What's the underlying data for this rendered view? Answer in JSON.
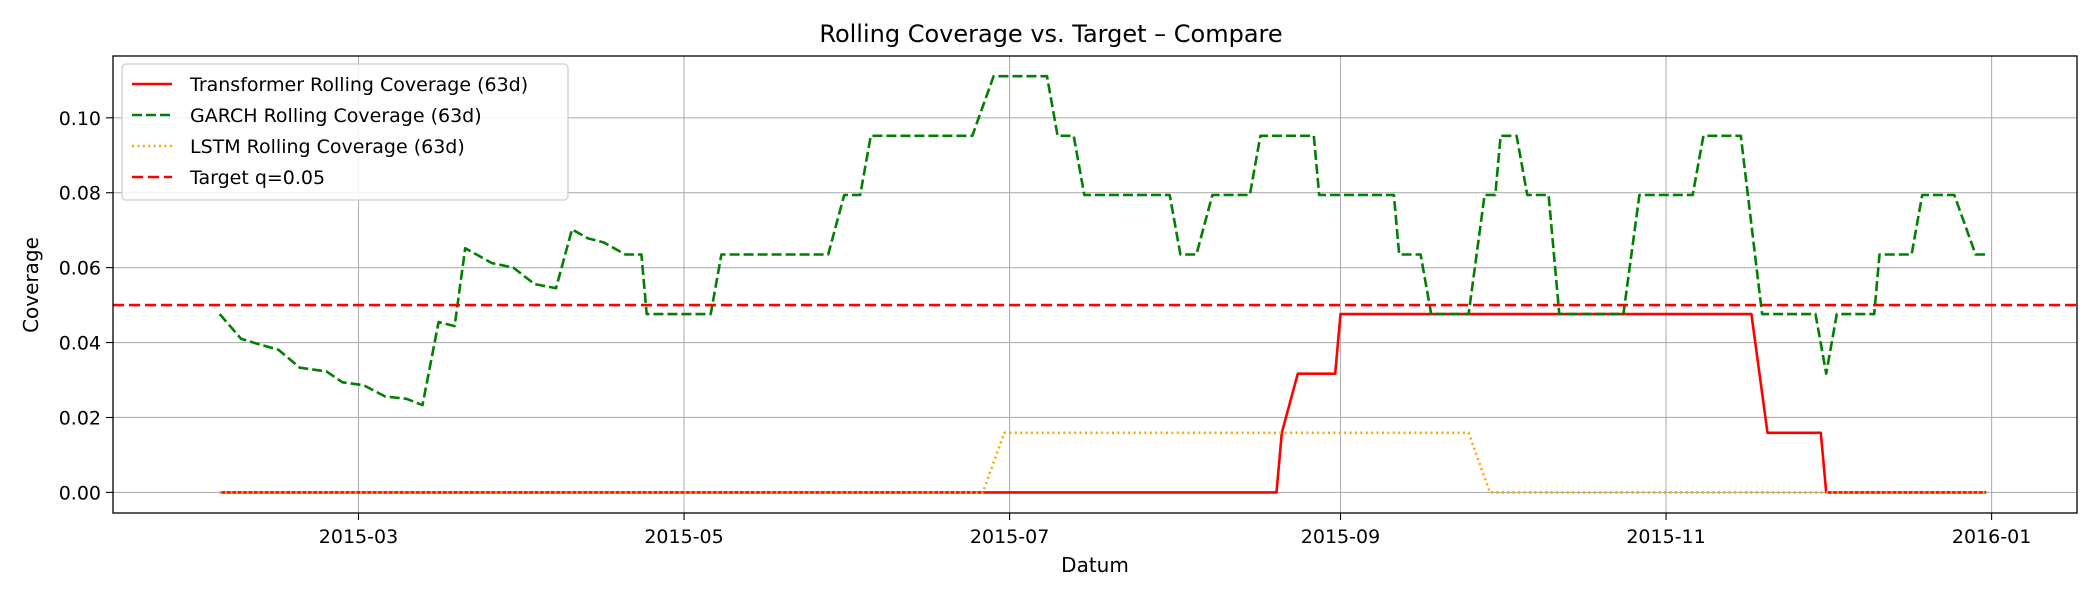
{
  "chart_data": {
    "type": "line",
    "title": "Rolling Coverage vs. Target – Compare",
    "xlabel": "Datum",
    "ylabel": "Coverage",
    "grid": true,
    "legend_position": "top-left",
    "xlim": [
      "2015-01-14",
      "2016-01-17"
    ],
    "ylim": [
      -0.0055,
      0.1165
    ],
    "x_ticks": [
      "2015-03-01",
      "2015-05-01",
      "2015-07-01",
      "2015-09-01",
      "2015-11-01",
      "2016-01-01"
    ],
    "x_tick_labels": [
      "2015-03",
      "2015-05",
      "2015-07",
      "2015-09",
      "2015-11",
      "2016-01"
    ],
    "y_ticks": [
      0.0,
      0.02,
      0.04,
      0.06,
      0.08,
      0.1
    ],
    "y_tick_labels": [
      "0.00",
      "0.02",
      "0.04",
      "0.06",
      "0.08",
      "0.10"
    ],
    "series": [
      {
        "name": "Transformer Rolling Coverage (63d)",
        "color": "#ff0000",
        "style": "solid",
        "points": [
          [
            "2015-02-03",
            0.0
          ],
          [
            "2015-08-20",
            0.0
          ],
          [
            "2015-08-21",
            0.0159
          ],
          [
            "2015-08-24",
            0.0317
          ],
          [
            "2015-08-31",
            0.0317
          ],
          [
            "2015-09-01",
            0.0476
          ],
          [
            "2015-11-17",
            0.0476
          ],
          [
            "2015-11-20",
            0.0159
          ],
          [
            "2015-11-30",
            0.0159
          ],
          [
            "2015-12-01",
            0.0
          ],
          [
            "2015-12-31",
            0.0
          ]
        ]
      },
      {
        "name": "GARCH Rolling Coverage (63d)",
        "color": "#008000",
        "style": "dashed",
        "points": [
          [
            "2015-02-03",
            0.0476
          ],
          [
            "2015-02-07",
            0.041
          ],
          [
            "2015-02-10",
            0.0397
          ],
          [
            "2015-02-14",
            0.0381
          ],
          [
            "2015-02-18",
            0.0333
          ],
          [
            "2015-02-23",
            0.0323
          ],
          [
            "2015-02-26",
            0.0294
          ],
          [
            "2015-03-02",
            0.0286
          ],
          [
            "2015-03-06",
            0.0256
          ],
          [
            "2015-03-10",
            0.025
          ],
          [
            "2015-03-13",
            0.0233
          ],
          [
            "2015-03-16",
            0.0455
          ],
          [
            "2015-03-19",
            0.0444
          ],
          [
            "2015-03-21",
            0.0652
          ],
          [
            "2015-03-26",
            0.0612
          ],
          [
            "2015-03-30",
            0.06
          ],
          [
            "2015-04-03",
            0.0556
          ],
          [
            "2015-04-07",
            0.0545
          ],
          [
            "2015-04-10",
            0.0702
          ],
          [
            "2015-04-13",
            0.0678
          ],
          [
            "2015-04-16",
            0.0667
          ],
          [
            "2015-04-20",
            0.0635
          ],
          [
            "2015-04-23",
            0.0635
          ],
          [
            "2015-04-24",
            0.0476
          ],
          [
            "2015-05-06",
            0.0476
          ],
          [
            "2015-05-08",
            0.0635
          ],
          [
            "2015-05-28",
            0.0635
          ],
          [
            "2015-05-31",
            0.0794
          ],
          [
            "2015-06-03",
            0.0794
          ],
          [
            "2015-06-05",
            0.0952
          ],
          [
            "2015-06-24",
            0.0952
          ],
          [
            "2015-06-28",
            0.1111
          ],
          [
            "2015-07-08",
            0.1111
          ],
          [
            "2015-07-10",
            0.0952
          ],
          [
            "2015-07-13",
            0.0952
          ],
          [
            "2015-07-15",
            0.0794
          ],
          [
            "2015-07-31",
            0.0794
          ],
          [
            "2015-08-02",
            0.0635
          ],
          [
            "2015-08-05",
            0.0635
          ],
          [
            "2015-08-08",
            0.0794
          ],
          [
            "2015-08-15",
            0.0794
          ],
          [
            "2015-08-17",
            0.0952
          ],
          [
            "2015-08-27",
            0.0952
          ],
          [
            "2015-08-28",
            0.0794
          ],
          [
            "2015-09-11",
            0.0794
          ],
          [
            "2015-09-12",
            0.0635
          ],
          [
            "2015-09-16",
            0.0635
          ],
          [
            "2015-09-18",
            0.0476
          ],
          [
            "2015-09-25",
            0.0476
          ],
          [
            "2015-09-28",
            0.0794
          ],
          [
            "2015-09-30",
            0.0794
          ],
          [
            "2015-10-01",
            0.0952
          ],
          [
            "2015-10-04",
            0.0952
          ],
          [
            "2015-10-06",
            0.0794
          ],
          [
            "2015-10-10",
            0.0794
          ],
          [
            "2015-10-12",
            0.0476
          ],
          [
            "2015-10-24",
            0.0476
          ],
          [
            "2015-10-27",
            0.0794
          ],
          [
            "2015-11-06",
            0.0794
          ],
          [
            "2015-11-08",
            0.0952
          ],
          [
            "2015-11-15",
            0.0952
          ],
          [
            "2015-11-19",
            0.0476
          ],
          [
            "2015-11-29",
            0.0476
          ],
          [
            "2015-12-01",
            0.0317
          ],
          [
            "2015-12-03",
            0.0476
          ],
          [
            "2015-12-10",
            0.0476
          ],
          [
            "2015-12-11",
            0.0635
          ],
          [
            "2015-12-17",
            0.0635
          ],
          [
            "2015-12-19",
            0.0794
          ],
          [
            "2015-12-25",
            0.0794
          ],
          [
            "2015-12-29",
            0.0635
          ],
          [
            "2015-12-31",
            0.0635
          ]
        ]
      },
      {
        "name": "LSTM Rolling Coverage (63d)",
        "color": "#ffa500",
        "style": "dotted",
        "points": [
          [
            "2015-02-03",
            0.0
          ],
          [
            "2015-06-26",
            0.0
          ],
          [
            "2015-06-30",
            0.0159
          ],
          [
            "2015-09-25",
            0.0159
          ],
          [
            "2015-09-29",
            0.0
          ],
          [
            "2015-12-31",
            0.0
          ]
        ]
      },
      {
        "name": "Target q=0.05",
        "color": "#ff0000",
        "style": "dashed-wide",
        "hline": 0.05
      }
    ]
  }
}
